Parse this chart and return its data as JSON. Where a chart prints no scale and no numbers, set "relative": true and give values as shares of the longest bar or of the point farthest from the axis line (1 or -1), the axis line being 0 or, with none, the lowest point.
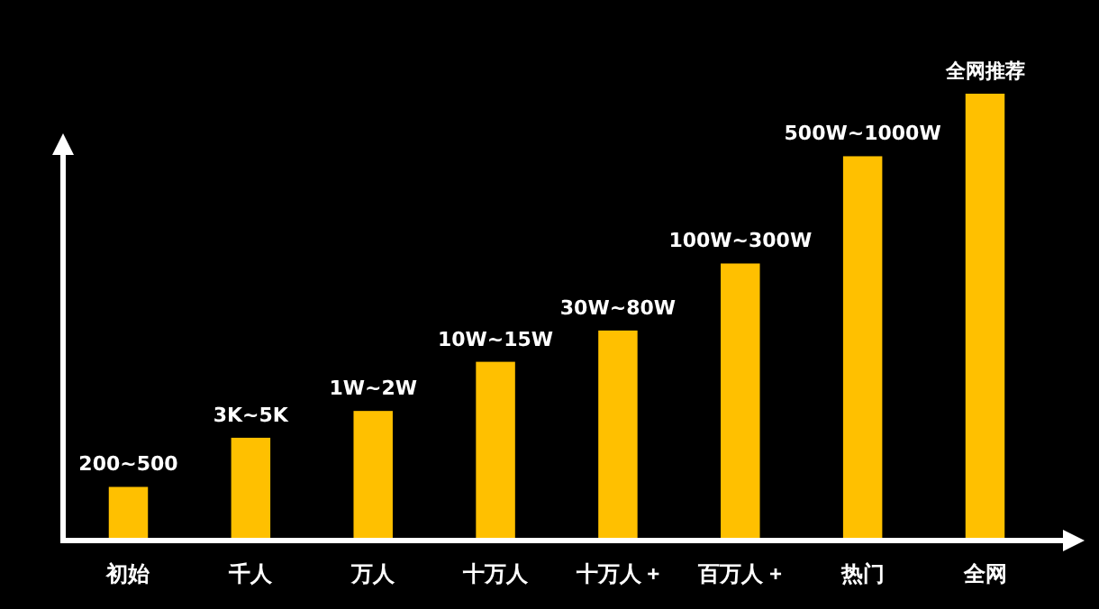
{
  "chart_data": {
    "type": "bar",
    "relative": true,
    "categories": [
      "初始",
      "千人",
      "万人",
      "十万人",
      "十万人 +",
      "百万人 +",
      "热门",
      "全网"
    ],
    "values": [
      0.12,
      0.23,
      0.29,
      0.4,
      0.47,
      0.62,
      0.86,
      1
    ],
    "annotations": [
      {
        "text": "200~500",
        "x": "初始",
        "y": 0.12
      },
      {
        "text": "3K~5K",
        "x": "千人",
        "y": 0.23
      },
      {
        "text": "1W~2W",
        "x": "万人",
        "y": 0.29
      },
      {
        "text": "10W~15W",
        "x": "十万人",
        "y": 0.4
      },
      {
        "text": "30W~80W",
        "x": "十万人 +",
        "y": 0.47
      },
      {
        "text": "100W~300W",
        "x": "百万人 +",
        "y": 0.62
      },
      {
        "text": "500W~1000W",
        "x": "热门",
        "y": 0.86
      },
      {
        "text": "全网推荐",
        "x": "全网",
        "y": 1
      }
    ],
    "color": "#ffc000",
    "grid": false
  }
}
